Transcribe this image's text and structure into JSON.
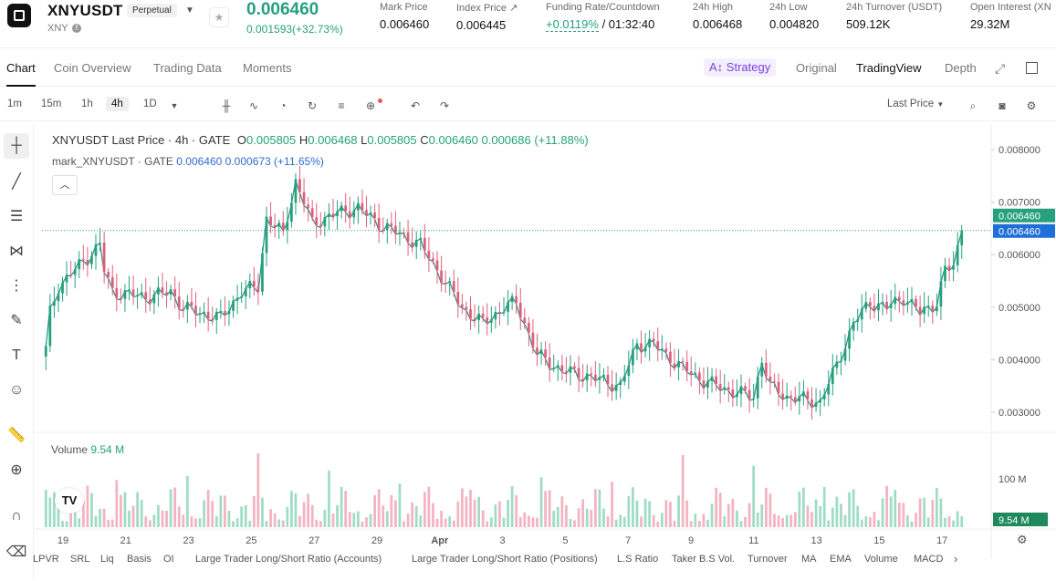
{
  "header": {
    "symbol": "XNYUSDT",
    "contract_type": "Perpetual",
    "subtitle": "XNY",
    "last_price": "0.006460",
    "change": "0.001593(+32.73%)",
    "stats": [
      {
        "label": "Mark Price",
        "value": "0.006460"
      },
      {
        "label": "Index Price ↗",
        "value": "0.006445"
      },
      {
        "label": "Funding Rate/Countdown",
        "value_green": "+0.0119%",
        "value": " / 01:32:40"
      },
      {
        "label": "24h High",
        "value": "0.006468"
      },
      {
        "label": "24h Low",
        "value": "0.004820"
      },
      {
        "label": "24h Turnover (USDT)",
        "value": "509.12K"
      },
      {
        "label": "Open Interest (XN",
        "value": "29.32M"
      }
    ]
  },
  "tabs": [
    "Chart",
    "Coin Overview",
    "Trading Data",
    "Moments"
  ],
  "view_tabs": {
    "strategy": "Strategy",
    "original": "Original",
    "tradingview": "TradingView",
    "depth": "Depth"
  },
  "toolbar": {
    "timeframes": [
      "1m",
      "15m",
      "1h",
      "4h",
      "1D"
    ],
    "active_timeframe": "4h",
    "price_source": "Last Price"
  },
  "legend": {
    "main": "XNYUSDT Last Price · 4h · GATE",
    "o_label": "O",
    "o": "0.005805",
    "h_label": "H",
    "h": "0.006468",
    "l_label": "L",
    "l": "0.005805",
    "c_label": "C",
    "c": "0.006460",
    "change": "0.000686 (+11.88%)",
    "mark_name": "mark_XNYUSDT · GATE",
    "mark_value": "0.006460",
    "mark_change": "0.000673 (+11.65%)",
    "volume_label": "Volume",
    "volume_value": "9.54 M"
  },
  "price_tags": {
    "last": "0.006460",
    "mark": "0.006460",
    "volume": "9.54 M"
  },
  "bottom_indicators": [
    "LPVR",
    "SRL",
    "Liq",
    "Basis",
    "OI",
    "Large Trader Long/Short Ratio (Accounts)",
    "Large Trader Long/Short Ratio (Positions)",
    "L.S Ratio",
    "Taker B.S Vol.",
    "Turnover",
    "MA",
    "EMA",
    "Volume",
    "MACD"
  ],
  "colors": {
    "up": "#26a17b",
    "down": "#e0607a",
    "mark_line": "#1f8f8a",
    "vol_up": "#9fdcc5",
    "vol_down": "#f3b3c0"
  },
  "chart_data": {
    "type": "candlestick",
    "interval": "4h",
    "y_ticks": [
      "0.008000",
      "0.007000",
      "0.006000",
      "0.005000",
      "0.004000",
      "0.003000"
    ],
    "ylim": [
      0.00272,
      0.00828
    ],
    "x_ticks": [
      "19",
      "21",
      "23",
      "25",
      "27",
      "29",
      "Apr",
      "3",
      "5",
      "7",
      "9",
      "11",
      "13",
      "15",
      "17"
    ],
    "volume_ticks": [
      "100 M"
    ],
    "close_anchors": [
      {
        "t": 0,
        "close": 0.0042
      },
      {
        "t": 1,
        "close": 0.0049
      },
      {
        "t": 3,
        "close": 0.0054
      },
      {
        "t": 8,
        "close": 0.0058
      },
      {
        "t": 13,
        "close": 0.0062
      },
      {
        "t": 14,
        "close": 0.0057
      },
      {
        "t": 16,
        "close": 0.0053
      },
      {
        "t": 24,
        "close": 0.0052
      },
      {
        "t": 30,
        "close": 0.0053
      },
      {
        "t": 33,
        "close": 0.005
      },
      {
        "t": 37,
        "close": 0.0049
      },
      {
        "t": 42,
        "close": 0.0048
      },
      {
        "t": 47,
        "close": 0.0053
      },
      {
        "t": 51,
        "close": 0.0054
      },
      {
        "t": 53,
        "close": 0.0067
      },
      {
        "t": 57,
        "close": 0.0064
      },
      {
        "t": 60,
        "close": 0.0074
      },
      {
        "t": 64,
        "close": 0.0066
      },
      {
        "t": 70,
        "close": 0.0068
      },
      {
        "t": 75,
        "close": 0.0069
      },
      {
        "t": 80,
        "close": 0.0066
      },
      {
        "t": 85,
        "close": 0.0064
      },
      {
        "t": 90,
        "close": 0.0062
      },
      {
        "t": 95,
        "close": 0.0056
      },
      {
        "t": 100,
        "close": 0.005
      },
      {
        "t": 105,
        "close": 0.0047
      },
      {
        "t": 110,
        "close": 0.005
      },
      {
        "t": 113,
        "close": 0.0051
      },
      {
        "t": 118,
        "close": 0.0041
      },
      {
        "t": 124,
        "close": 0.0038
      },
      {
        "t": 130,
        "close": 0.0037
      },
      {
        "t": 138,
        "close": 0.0035
      },
      {
        "t": 142,
        "close": 0.0043
      },
      {
        "t": 146,
        "close": 0.0043
      },
      {
        "t": 152,
        "close": 0.0039
      },
      {
        "t": 158,
        "close": 0.0036
      },
      {
        "t": 165,
        "close": 0.0034
      },
      {
        "t": 170,
        "close": 0.0033
      },
      {
        "t": 172,
        "close": 0.004
      },
      {
        "t": 174,
        "close": 0.0035
      },
      {
        "t": 178,
        "close": 0.0033
      },
      {
        "t": 186,
        "close": 0.0032
      },
      {
        "t": 190,
        "close": 0.0039
      },
      {
        "t": 194,
        "close": 0.0047
      },
      {
        "t": 198,
        "close": 0.0051
      },
      {
        "t": 202,
        "close": 0.005
      },
      {
        "t": 206,
        "close": 0.0052
      },
      {
        "t": 210,
        "close": 0.0049
      },
      {
        "t": 214,
        "close": 0.0051
      },
      {
        "t": 216,
        "close": 0.0057
      },
      {
        "t": 218,
        "close": 0.0058
      },
      {
        "t": 220,
        "close": 0.00646
      }
    ]
  }
}
